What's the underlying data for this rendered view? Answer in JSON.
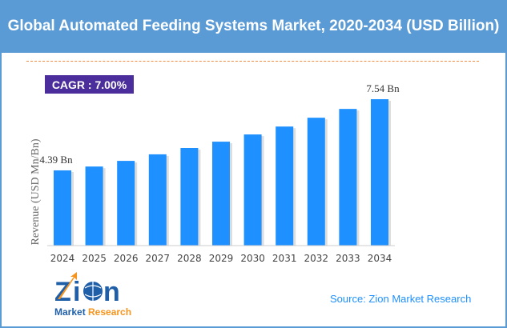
{
  "title": "Global Automated Feeding Systems Market, 2020-2034 (USD Billion)",
  "cagr_label": "CAGR : 7.00%",
  "source": "Source: Zion Market Research",
  "logo_text": "Zion Market Research",
  "colors": {
    "header": "#5b9bd5",
    "bar": "#1e90ff",
    "cagr_box": "#4b2e9b",
    "dashed_line": "#f08a3c"
  },
  "chart_data": {
    "type": "bar",
    "title": "Global Automated Feeding Systems Market, 2020-2034 (USD Billion)",
    "ylabel": "Revenue (USD Mn/Bn)",
    "xlabel": "",
    "categories": [
      "2024",
      "2025",
      "2026",
      "2027",
      "2028",
      "2029",
      "2030",
      "2031",
      "2032",
      "2033",
      "2034"
    ],
    "values": [
      4.39,
      4.56,
      4.81,
      5.1,
      5.38,
      5.66,
      5.98,
      6.33,
      6.72,
      7.11,
      7.54
    ],
    "data_labels": {
      "first": "4.39 Bn",
      "last": "7.54 Bn"
    },
    "grid": false,
    "legend": "none"
  }
}
